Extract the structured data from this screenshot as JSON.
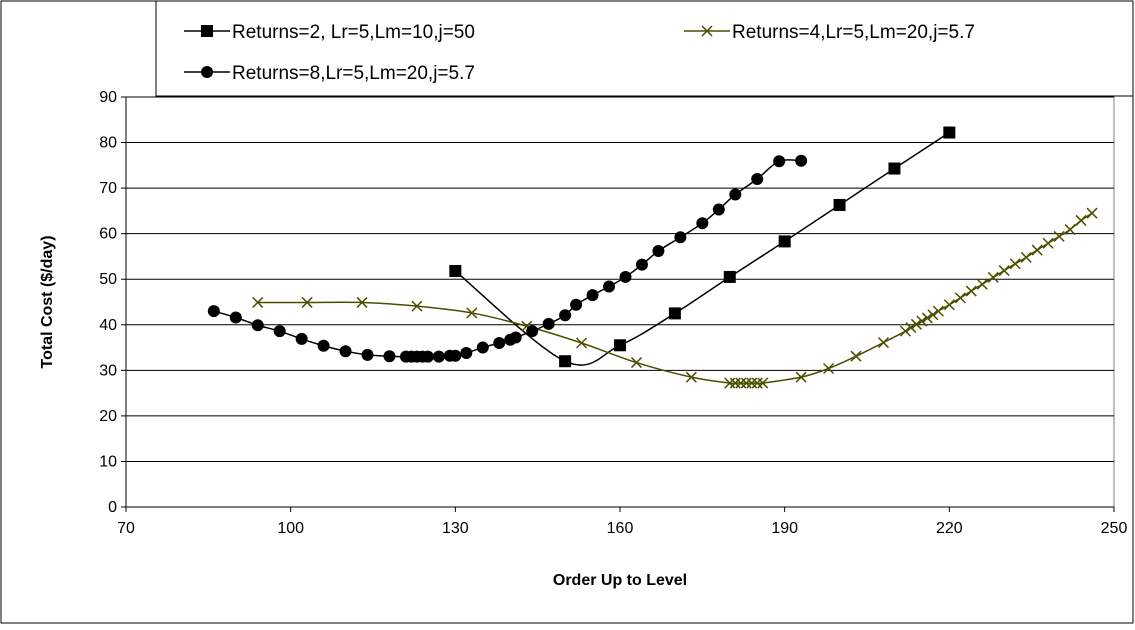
{
  "chart_data": {
    "type": "line",
    "title": "",
    "xlabel": "Order Up to Level",
    "ylabel": "Total Cost ($/day)",
    "xlim": [
      70,
      250
    ],
    "ylim": [
      0,
      90
    ],
    "xticks": [
      70,
      100,
      130,
      160,
      190,
      220,
      250
    ],
    "yticks": [
      0,
      10,
      20,
      30,
      40,
      50,
      60,
      70,
      80,
      90
    ],
    "grid": "horizontal",
    "legend_position": "top",
    "series": [
      {
        "name": "Returns=2, Lr=5,Lm=10,j=50",
        "marker": "square",
        "color": "#000000",
        "x": [
          130,
          150,
          160,
          170,
          180,
          190,
          200,
          210,
          220
        ],
        "y": [
          51.8,
          32.0,
          35.5,
          42.5,
          50.5,
          58.3,
          66.3,
          74.3,
          82.2
        ]
      },
      {
        "name": "Returns=4,Lr=5,Lm=20,j=5.7",
        "marker": "x",
        "color": "#4d4d00",
        "x": [
          94,
          103,
          113,
          123,
          133,
          143,
          153,
          163,
          173,
          180,
          181,
          182,
          183,
          184,
          185,
          186,
          193,
          198,
          203,
          208,
          212,
          213,
          214,
          215,
          216,
          217,
          218,
          220,
          222,
          224,
          226,
          228,
          230,
          232,
          234,
          236,
          238,
          240,
          242,
          244,
          246
        ],
        "y": [
          44.9,
          44.9,
          44.9,
          44.1,
          42.6,
          39.7,
          36.0,
          31.7,
          28.5,
          27.2,
          27.2,
          27.2,
          27.2,
          27.2,
          27.2,
          27.2,
          28.5,
          30.4,
          33.1,
          36.1,
          38.6,
          39.4,
          40.1,
          40.8,
          41.5,
          42.2,
          43.0,
          44.4,
          45.9,
          47.4,
          48.9,
          50.4,
          51.9,
          53.4,
          54.8,
          56.4,
          57.9,
          59.4,
          60.9,
          62.9,
          64.5
        ]
      },
      {
        "name": "Returns=8,Lr=5,Lm=20,j=5.7",
        "marker": "circle",
        "color": "#000000",
        "x": [
          86,
          90,
          94,
          98,
          102,
          106,
          110,
          114,
          118,
          121,
          122,
          123,
          124,
          125,
          127,
          129,
          130,
          132,
          135,
          138,
          140,
          141,
          144,
          147,
          150,
          152,
          155,
          158,
          161,
          164,
          167,
          171,
          175,
          178,
          181,
          185,
          189,
          193
        ],
        "y": [
          43.0,
          41.6,
          39.9,
          38.6,
          36.9,
          35.4,
          34.2,
          33.4,
          33.1,
          33.0,
          33.0,
          33.0,
          33.0,
          33.0,
          33.0,
          33.2,
          33.2,
          33.8,
          35.0,
          36.0,
          36.7,
          37.2,
          38.6,
          40.2,
          42.1,
          44.4,
          46.5,
          48.4,
          50.5,
          53.2,
          56.2,
          59.2,
          62.3,
          65.3,
          68.6,
          72.0,
          75.9,
          76.0
        ]
      }
    ]
  }
}
